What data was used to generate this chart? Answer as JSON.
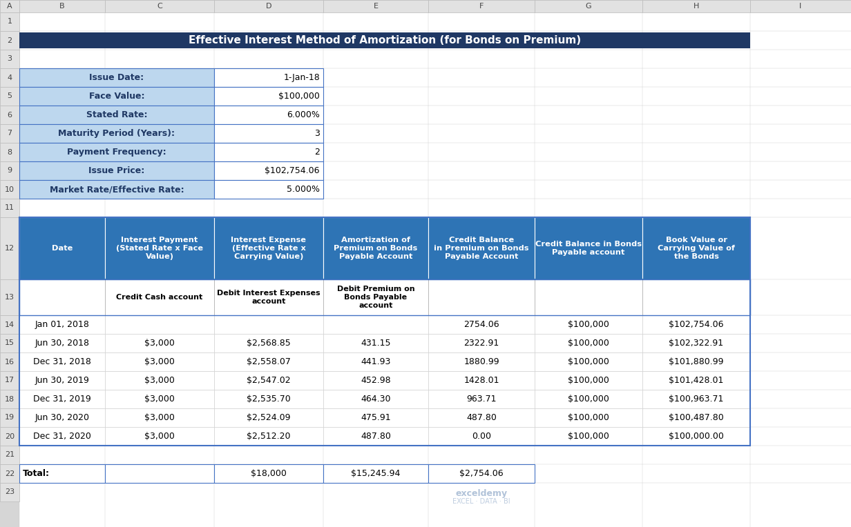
{
  "title": "Effective Interest Method of Amortization (for Bonds on Premium)",
  "title_bg": "#1F3864",
  "title_fg": "#FFFFFF",
  "info_label_bg": "#BDD7EE",
  "info_value_bg": "#FFFFFF",
  "info_border": "#4472C4",
  "info_rows": [
    {
      "label": "Issue Date:",
      "value": "1-Jan-18"
    },
    {
      "label": "Face Value:",
      "value": "$100,000"
    },
    {
      "label": "Stated Rate:",
      "value": "6.000%"
    },
    {
      "label": "Maturity Period (Years):",
      "value": "3"
    },
    {
      "label": "Payment Frequency:",
      "value": "2"
    },
    {
      "label": "Issue Price:",
      "value": "$102,754.06"
    },
    {
      "label": "Market Rate/Effective Rate:",
      "value": "5.000%"
    }
  ],
  "table_header_bg": "#2E74B5",
  "table_header_fg": "#FFFFFF",
  "col_headers": [
    "Date",
    "Interest Payment\n(Stated Rate x Face\nValue)",
    "Interest Expense\n(Effective Rate x\nCarrying Value)",
    "Amortization of\nPremium on Bonds\nPayable Account",
    "Credit Balance\nin Premium on Bonds\nPayable Account",
    "Credit Balance in Bonds\nPayable account",
    "Book Value or\nCarrying Value of\nthe Bonds"
  ],
  "col_subheaders": [
    "",
    "Credit Cash account",
    "Debit Interest Expenses\naccount",
    "Debit Premium on\nBonds Payable\naccount",
    "",
    "",
    ""
  ],
  "data_rows": [
    [
      "Jan 01, 2018",
      "",
      "",
      "",
      "2754.06",
      "$100,000",
      "$102,754.06"
    ],
    [
      "Jun 30, 2018",
      "$3,000",
      "$2,568.85",
      "431.15",
      "2322.91",
      "$100,000",
      "$102,322.91"
    ],
    [
      "Dec 31, 2018",
      "$3,000",
      "$2,558.07",
      "441.93",
      "1880.99",
      "$100,000",
      "$101,880.99"
    ],
    [
      "Jun 30, 2019",
      "$3,000",
      "$2,547.02",
      "452.98",
      "1428.01",
      "$100,000",
      "$101,428.01"
    ],
    [
      "Dec 31, 2019",
      "$3,000",
      "$2,535.70",
      "464.30",
      "963.71",
      "$100,000",
      "$100,963.71"
    ],
    [
      "Jun 30, 2020",
      "$3,000",
      "$2,524.09",
      "475.91",
      "487.80",
      "$100,000",
      "$100,487.80"
    ],
    [
      "Dec 31, 2020",
      "$3,000",
      "$2,512.20",
      "487.80",
      "0.00",
      "$100,000",
      "$100,000.00"
    ]
  ],
  "total_labels": [
    "Total:",
    "",
    "$18,000",
    "$15,245.94",
    "$2,754.06"
  ],
  "outer_bg": "#D6D6D6",
  "watermark_text": "exceldemy",
  "watermark_sub": "EXCEL · DATA · BI",
  "col_letters": [
    "A",
    "B",
    "C",
    "D",
    "E",
    "F",
    "G",
    "H",
    "I"
  ],
  "row_numbers": [
    1,
    2,
    3,
    4,
    5,
    6,
    7,
    8,
    9,
    10,
    11,
    12,
    13,
    14,
    15,
    16,
    17,
    18,
    19,
    20,
    21,
    22,
    23
  ]
}
